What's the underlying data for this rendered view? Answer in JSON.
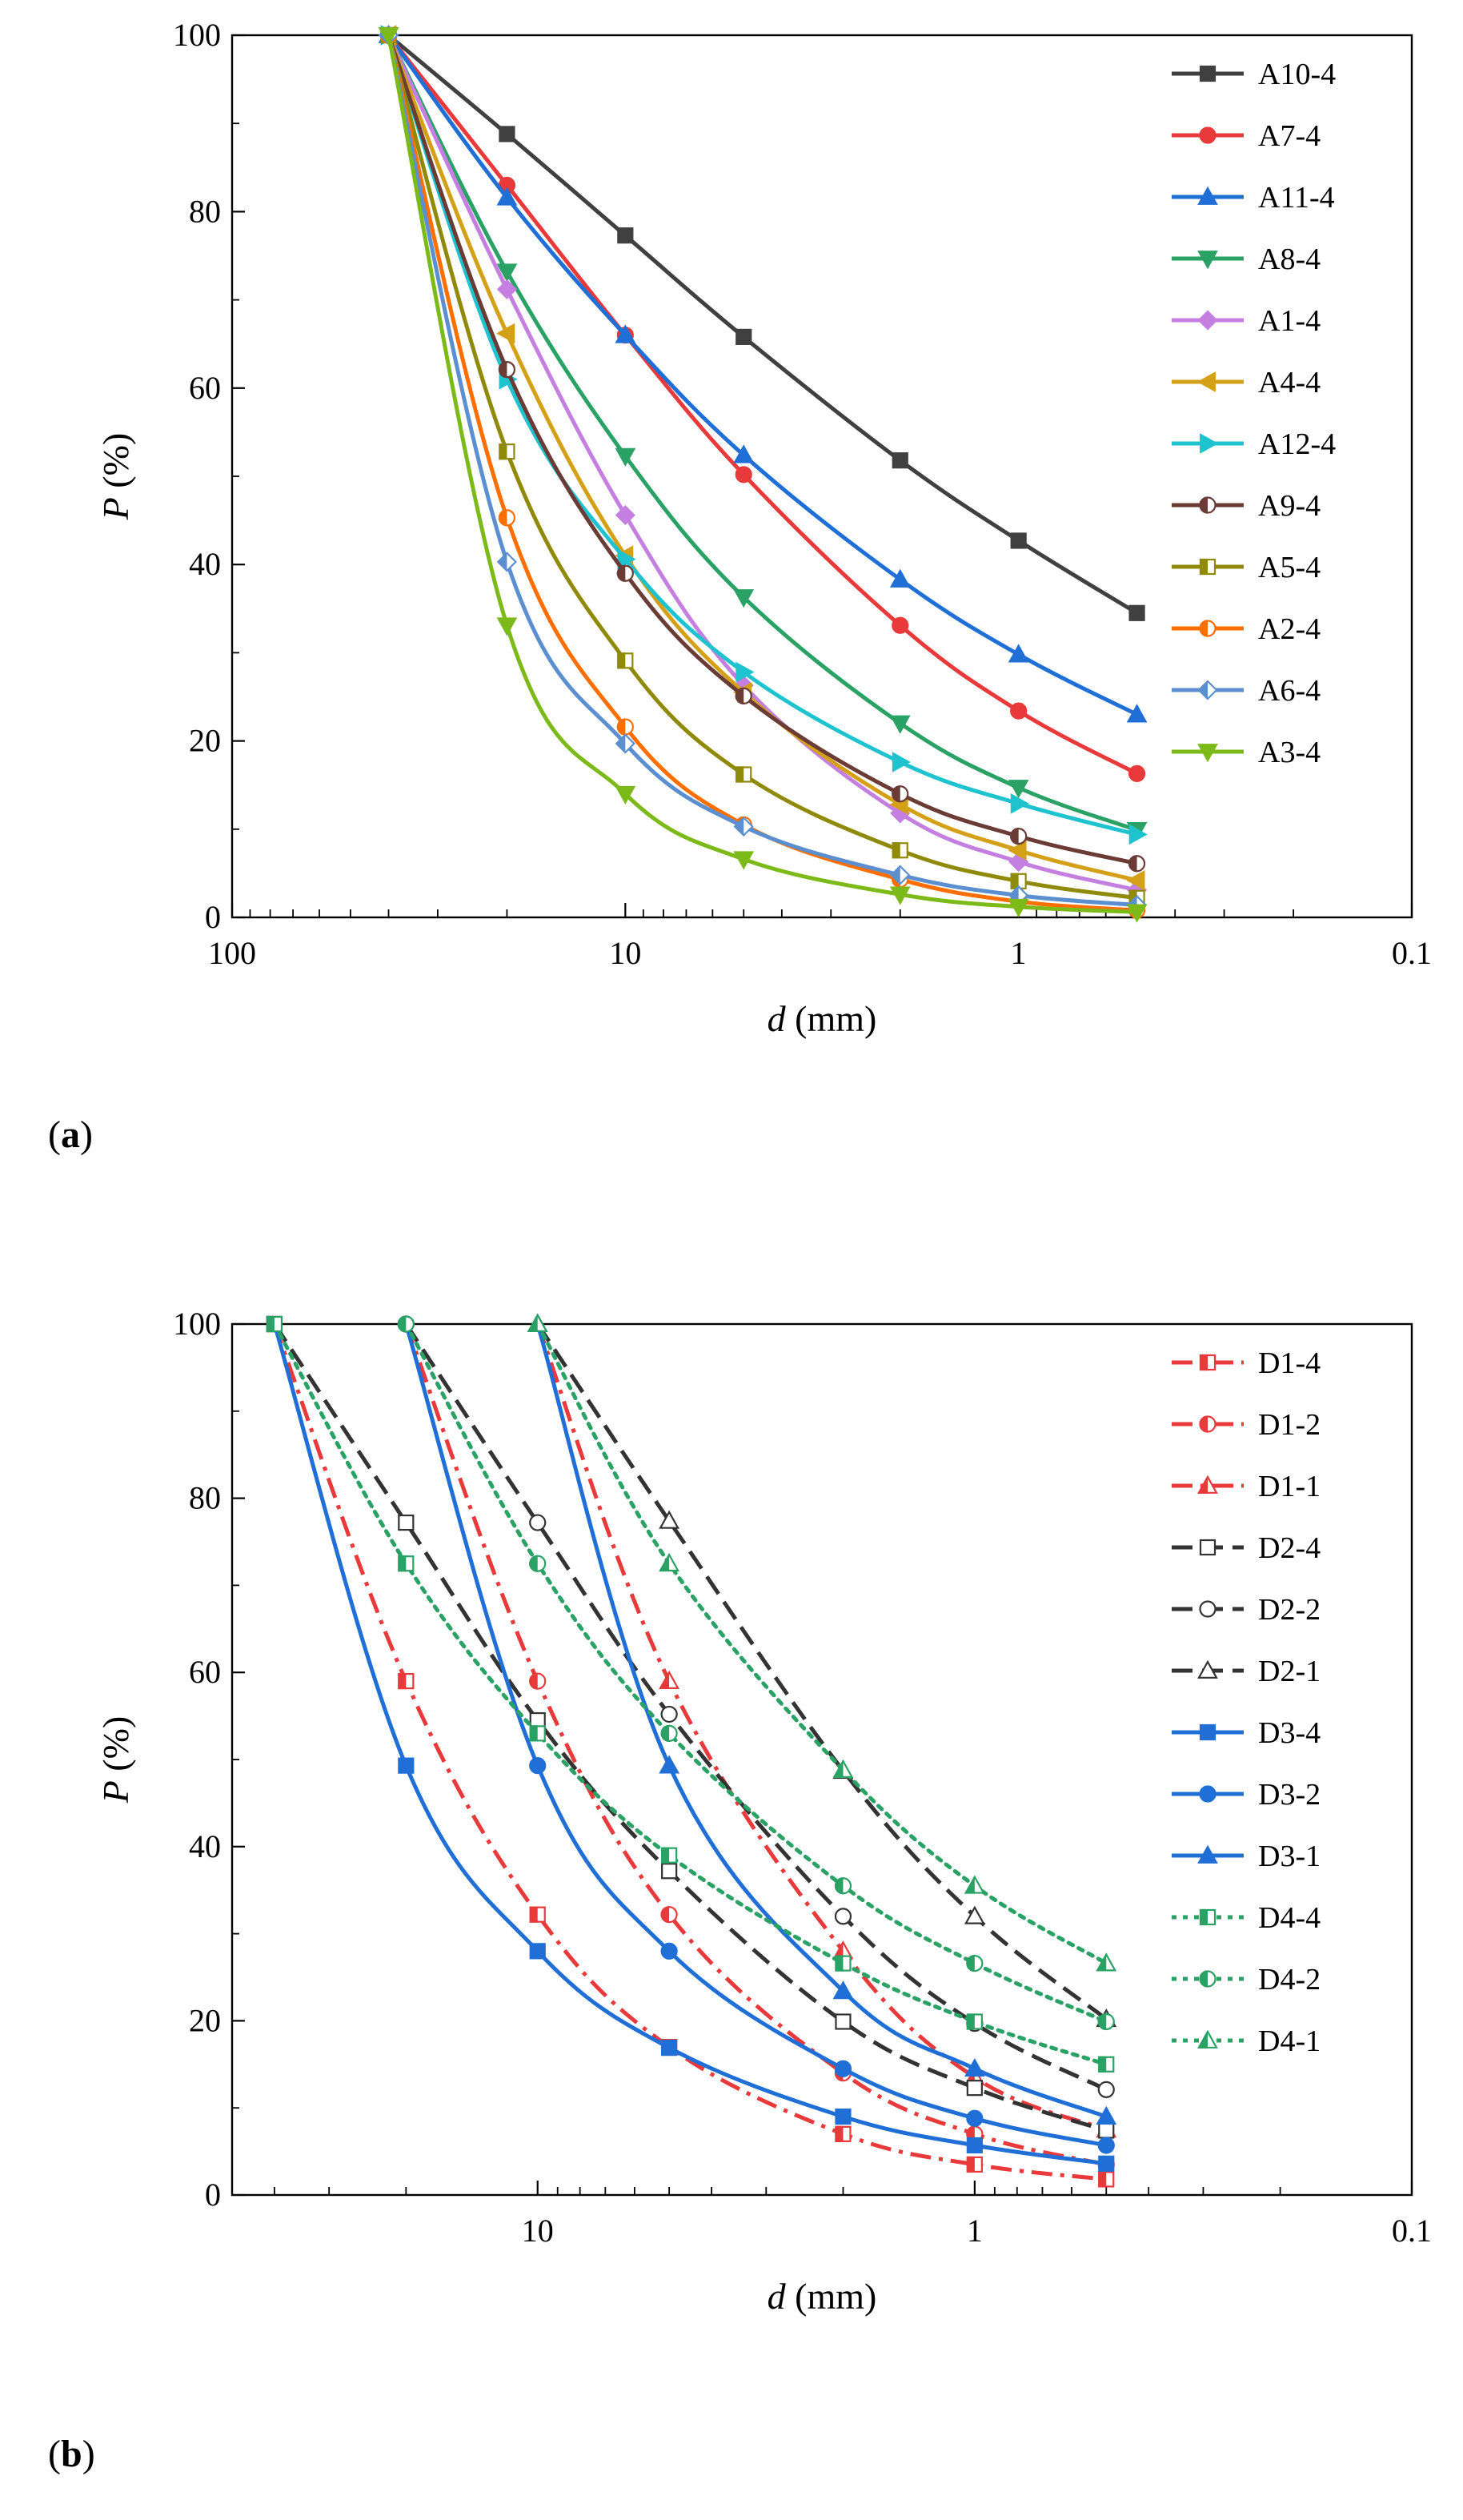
{
  "chart_data": [
    {
      "type": "line",
      "panel": "(a)",
      "panel_letter": "a",
      "xlabel_var": "d",
      "xlabel_unit": " (mm)",
      "ylabel_var": "P",
      "ylabel_unit": " (%)",
      "x_scale": "log",
      "x_reversed": true,
      "xlim": [
        100,
        0.1
      ],
      "ylim": [
        0,
        100
      ],
      "x_ticks": [
        100,
        10,
        1,
        0.1
      ],
      "x_tick_labels": [
        "100",
        "10",
        "1",
        "0.1"
      ],
      "y_ticks": [
        0,
        20,
        40,
        60,
        80,
        100
      ],
      "y_tick_labels": [
        "0",
        "20",
        "40",
        "60",
        "80",
        "100"
      ],
      "legend_position": "top-right",
      "x": [
        40,
        20,
        10,
        5,
        2,
        1,
        0.5
      ],
      "series": [
        {
          "name": "A10-4",
          "color": "#404040",
          "marker": "square",
          "dash": "solid",
          "values": [
            100,
            88.8,
            77.3,
            65.8,
            51.8,
            42.7,
            34.5
          ]
        },
        {
          "name": "A7-4",
          "color": "#e8393b",
          "marker": "circle",
          "dash": "solid",
          "values": [
            100,
            83,
            66,
            50.2,
            33.1,
            23.4,
            16.3
          ]
        },
        {
          "name": "A11-4",
          "color": "#1f6fd6",
          "marker": "triangle-up",
          "dash": "solid",
          "values": [
            100,
            81.6,
            66,
            52.4,
            38.3,
            29.8,
            23
          ]
        },
        {
          "name": "A8-4",
          "color": "#2aa265",
          "marker": "triangle-down",
          "dash": "solid",
          "values": [
            100,
            73.2,
            52.3,
            36.3,
            22,
            14.7,
            9.9
          ]
        },
        {
          "name": "A1-4",
          "color": "#c47fe0",
          "marker": "diamond",
          "dash": "solid",
          "values": [
            100,
            71.2,
            45.6,
            26.3,
            11.8,
            6.3,
            3.1
          ]
        },
        {
          "name": "A4-4",
          "color": "#d4a017",
          "marker": "triangle-left",
          "dash": "solid",
          "values": [
            100,
            66.2,
            41,
            25.5,
            12.8,
            7.6,
            4.2
          ]
        },
        {
          "name": "A12-4",
          "color": "#1ec3cf",
          "marker": "triangle-right",
          "dash": "solid",
          "values": [
            100,
            61,
            40.6,
            27.8,
            17.6,
            12.9,
            9.4
          ]
        },
        {
          "name": "A9-4",
          "color": "#6b3b36",
          "marker": "circle-half",
          "dash": "solid",
          "values": [
            100,
            62.1,
            39,
            25.1,
            14,
            9.2,
            6.1
          ]
        },
        {
          "name": "A5-4",
          "color": "#8f8a0a",
          "marker": "square-half",
          "dash": "solid",
          "values": [
            100,
            52.8,
            29.1,
            16.2,
            7.6,
            4.1,
            2.2
          ]
        },
        {
          "name": "A2-4",
          "color": "#ff6f00",
          "marker": "circle-half",
          "dash": "solid",
          "values": [
            100,
            45.3,
            21.6,
            10.5,
            4.3,
            1.8,
            0.8
          ]
        },
        {
          "name": "A6-4",
          "color": "#5b8fcf",
          "marker": "diamond-half",
          "dash": "solid",
          "values": [
            100,
            40.3,
            19.7,
            10.3,
            4.8,
            2.5,
            1.4
          ]
        },
        {
          "name": "A3-4",
          "color": "#7cba1a",
          "marker": "triangle-down",
          "dash": "solid",
          "values": [
            100,
            33.1,
            14,
            6.6,
            2.6,
            1.2,
            0.6
          ]
        }
      ]
    },
    {
      "type": "line",
      "panel": "(b)",
      "panel_letter": "b",
      "xlabel_var": "d",
      "xlabel_unit": " (mm)",
      "ylabel_var": "P",
      "ylabel_unit": " (%)",
      "x_scale": "log",
      "x_reversed": true,
      "xlim": [
        50,
        0.1
      ],
      "ylim": [
        0,
        100
      ],
      "x_ticks": [
        10,
        1,
        0.1
      ],
      "x_tick_labels": [
        "10",
        "1",
        "0.1"
      ],
      "y_ticks": [
        0,
        20,
        40,
        60,
        80,
        100
      ],
      "y_tick_labels": [
        "0",
        "20",
        "40",
        "60",
        "80",
        "100"
      ],
      "legend_position": "top-right",
      "series": [
        {
          "name": "D1-4",
          "color": "#e8393b",
          "marker": "square-half",
          "dash": "dashdot",
          "x": [
            40,
            20,
            10,
            5,
            2,
            1,
            0.5
          ],
          "values": [
            100,
            59,
            32.2,
            17,
            7,
            3.5,
            1.8
          ]
        },
        {
          "name": "D1-2",
          "color": "#e8393b",
          "marker": "circle-half",
          "dash": "dashdot",
          "x": [
            20,
            10,
            5,
            2,
            1,
            0.5
          ],
          "values": [
            100,
            59,
            32.2,
            14,
            7,
            3.5
          ]
        },
        {
          "name": "D1-1",
          "color": "#e8393b",
          "marker": "triangle-half",
          "dash": "dashdot",
          "x": [
            10,
            5,
            2,
            1,
            0.5
          ],
          "values": [
            100,
            59,
            28,
            13.5,
            7.5
          ]
        },
        {
          "name": "D2-4",
          "color": "#333333",
          "marker": "square-open",
          "dash": "dash",
          "x": [
            40,
            20,
            10,
            5,
            2,
            1,
            0.5
          ],
          "values": [
            100,
            77.2,
            54.5,
            37.2,
            19.9,
            12.3,
            7.4
          ]
        },
        {
          "name": "D2-2",
          "color": "#333333",
          "marker": "circle-open",
          "dash": "dash",
          "x": [
            20,
            10,
            5,
            2,
            1,
            0.5
          ],
          "values": [
            100,
            77.2,
            55.2,
            32,
            19.7,
            12.1
          ]
        },
        {
          "name": "D2-1",
          "color": "#333333",
          "marker": "triangle-open",
          "dash": "dash",
          "x": [
            10,
            5,
            2,
            1,
            0.5
          ],
          "values": [
            100,
            77.4,
            48.7,
            32,
            20.2
          ]
        },
        {
          "name": "D3-4",
          "color": "#1f6fd6",
          "marker": "square",
          "dash": "solid",
          "x": [
            40,
            20,
            10,
            5,
            2,
            1,
            0.5
          ],
          "values": [
            100,
            49.3,
            28,
            16.9,
            9,
            5.7,
            3.6
          ]
        },
        {
          "name": "D3-2",
          "color": "#1f6fd6",
          "marker": "circle",
          "dash": "solid",
          "x": [
            20,
            10,
            5,
            2,
            1,
            0.5
          ],
          "values": [
            100,
            49.3,
            28,
            14.5,
            8.8,
            5.7
          ]
        },
        {
          "name": "D3-1",
          "color": "#1f6fd6",
          "marker": "triangle-up",
          "dash": "solid",
          "x": [
            10,
            5,
            2,
            1,
            0.5
          ],
          "values": [
            100,
            49.3,
            23.4,
            14.5,
            9
          ]
        },
        {
          "name": "D4-4",
          "color": "#2aa265",
          "marker": "square-half",
          "dash": "dot",
          "x": [
            40,
            20,
            10,
            5,
            2,
            1,
            0.5
          ],
          "values": [
            100,
            72.5,
            53,
            39,
            26.6,
            19.9,
            15
          ]
        },
        {
          "name": "D4-2",
          "color": "#2aa265",
          "marker": "circle-half",
          "dash": "dot",
          "x": [
            20,
            10,
            5,
            2,
            1,
            0.5
          ],
          "values": [
            100,
            72.5,
            53,
            35.5,
            26.6,
            19.9
          ]
        },
        {
          "name": "D4-1",
          "color": "#2aa265",
          "marker": "triangle-half",
          "dash": "dot",
          "x": [
            10,
            5,
            2,
            1,
            0.5
          ],
          "values": [
            100,
            72.5,
            48.8,
            35.5,
            26.6
          ]
        }
      ]
    }
  ]
}
